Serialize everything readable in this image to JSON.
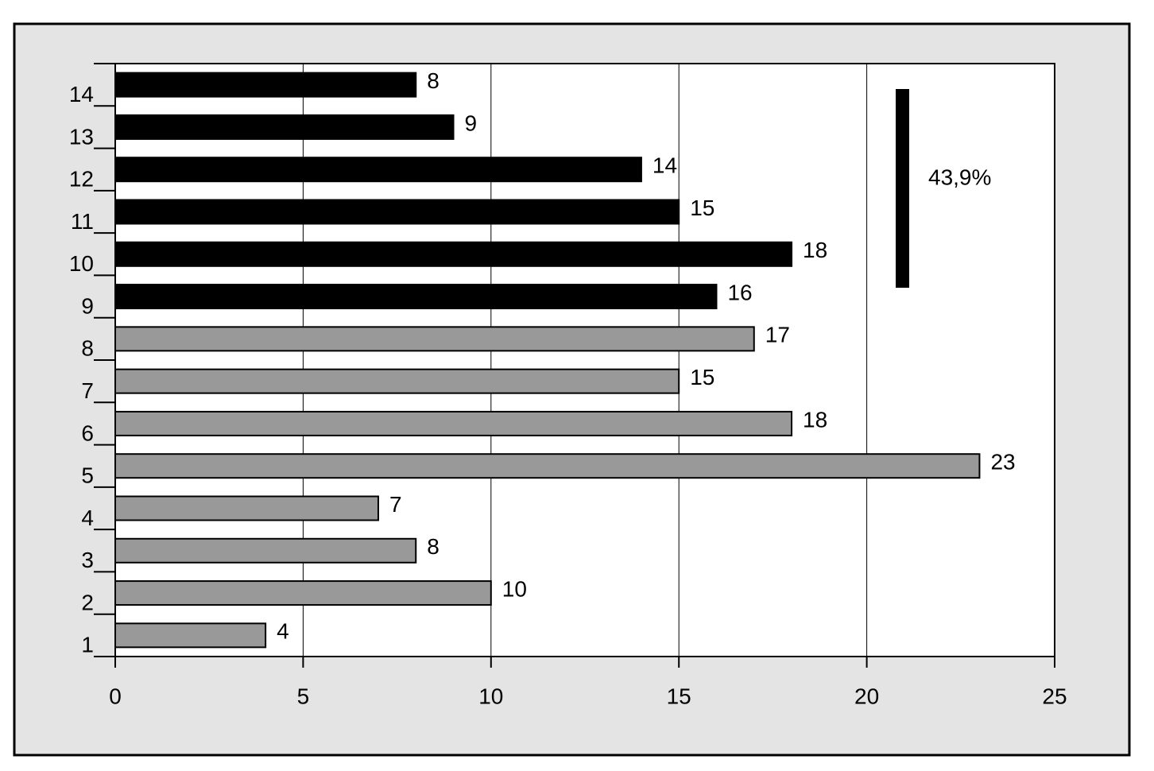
{
  "chart_data": {
    "type": "bar",
    "orientation": "horizontal",
    "categories": [
      "1",
      "2",
      "3",
      "4",
      "5",
      "6",
      "7",
      "8",
      "9",
      "10",
      "11",
      "12",
      "13",
      "14"
    ],
    "values": [
      4,
      10,
      8,
      7,
      23,
      18,
      15,
      17,
      16,
      18,
      15,
      14,
      9,
      8
    ],
    "colors": [
      "#999999",
      "#999999",
      "#999999",
      "#999999",
      "#999999",
      "#999999",
      "#999999",
      "#999999",
      "#000000",
      "#000000",
      "#000000",
      "#000000",
      "#000000",
      "#000000"
    ],
    "xlim": [
      0,
      25
    ],
    "xticks": [
      0,
      5,
      10,
      15,
      20,
      25
    ],
    "grid": true,
    "annotation": "43,9%"
  }
}
